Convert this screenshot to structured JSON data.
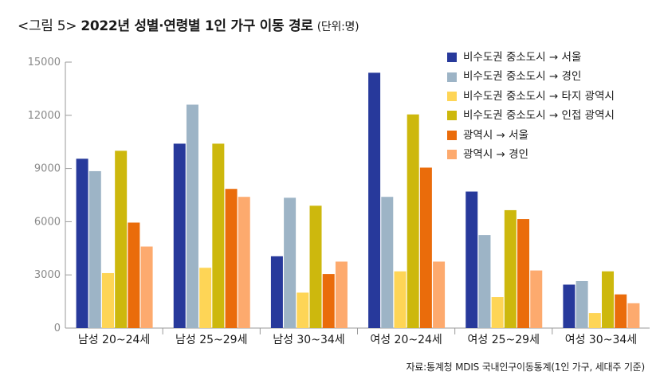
{
  "header": {
    "tag": "<그림 5>",
    "title": "2022년 성별·연령별 1인 가구 이동 경로",
    "unit": "(단위:명)"
  },
  "source": "자료:통계청 MDIS 국내인구이동통계(1인 가구, 세대주 기준)",
  "chart_data": {
    "type": "bar",
    "categories": [
      "남성 20~24세",
      "남성 25~29세",
      "남성 30~34세",
      "여성 20~24세",
      "여성 25~29세",
      "여성 30~34세"
    ],
    "series": [
      {
        "name": "비수도권 중소도시 → 서울",
        "color": "#27399b",
        "values": [
          9550,
          10400,
          4050,
          14400,
          7700,
          2450
        ]
      },
      {
        "name": "비수도권 중소도시 → 경인",
        "color": "#9db4c6",
        "values": [
          8850,
          12600,
          7350,
          7400,
          5250,
          2650
        ]
      },
      {
        "name": "비수도권 중소도시 → 타지 광역시",
        "color": "#fed556",
        "values": [
          3100,
          3400,
          2000,
          3200,
          1750,
          850
        ]
      },
      {
        "name": "비수도권 중소도시 → 인접 광역시",
        "color": "#cdb80d",
        "values": [
          10000,
          10400,
          6900,
          12050,
          6650,
          3200
        ]
      },
      {
        "name": "광역시 → 서울",
        "color": "#ea6c0b",
        "values": [
          5950,
          7850,
          3050,
          9050,
          6150,
          1900
        ]
      },
      {
        "name": "광역시 → 경인",
        "color": "#fdaa6e",
        "values": [
          4600,
          7400,
          3750,
          3750,
          3250,
          1400
        ]
      }
    ],
    "y_ticks": [
      0,
      3000,
      6000,
      9000,
      12000,
      15000
    ],
    "ylim": [
      0,
      15000
    ],
    "grid": false,
    "legend_position": "top-right"
  }
}
